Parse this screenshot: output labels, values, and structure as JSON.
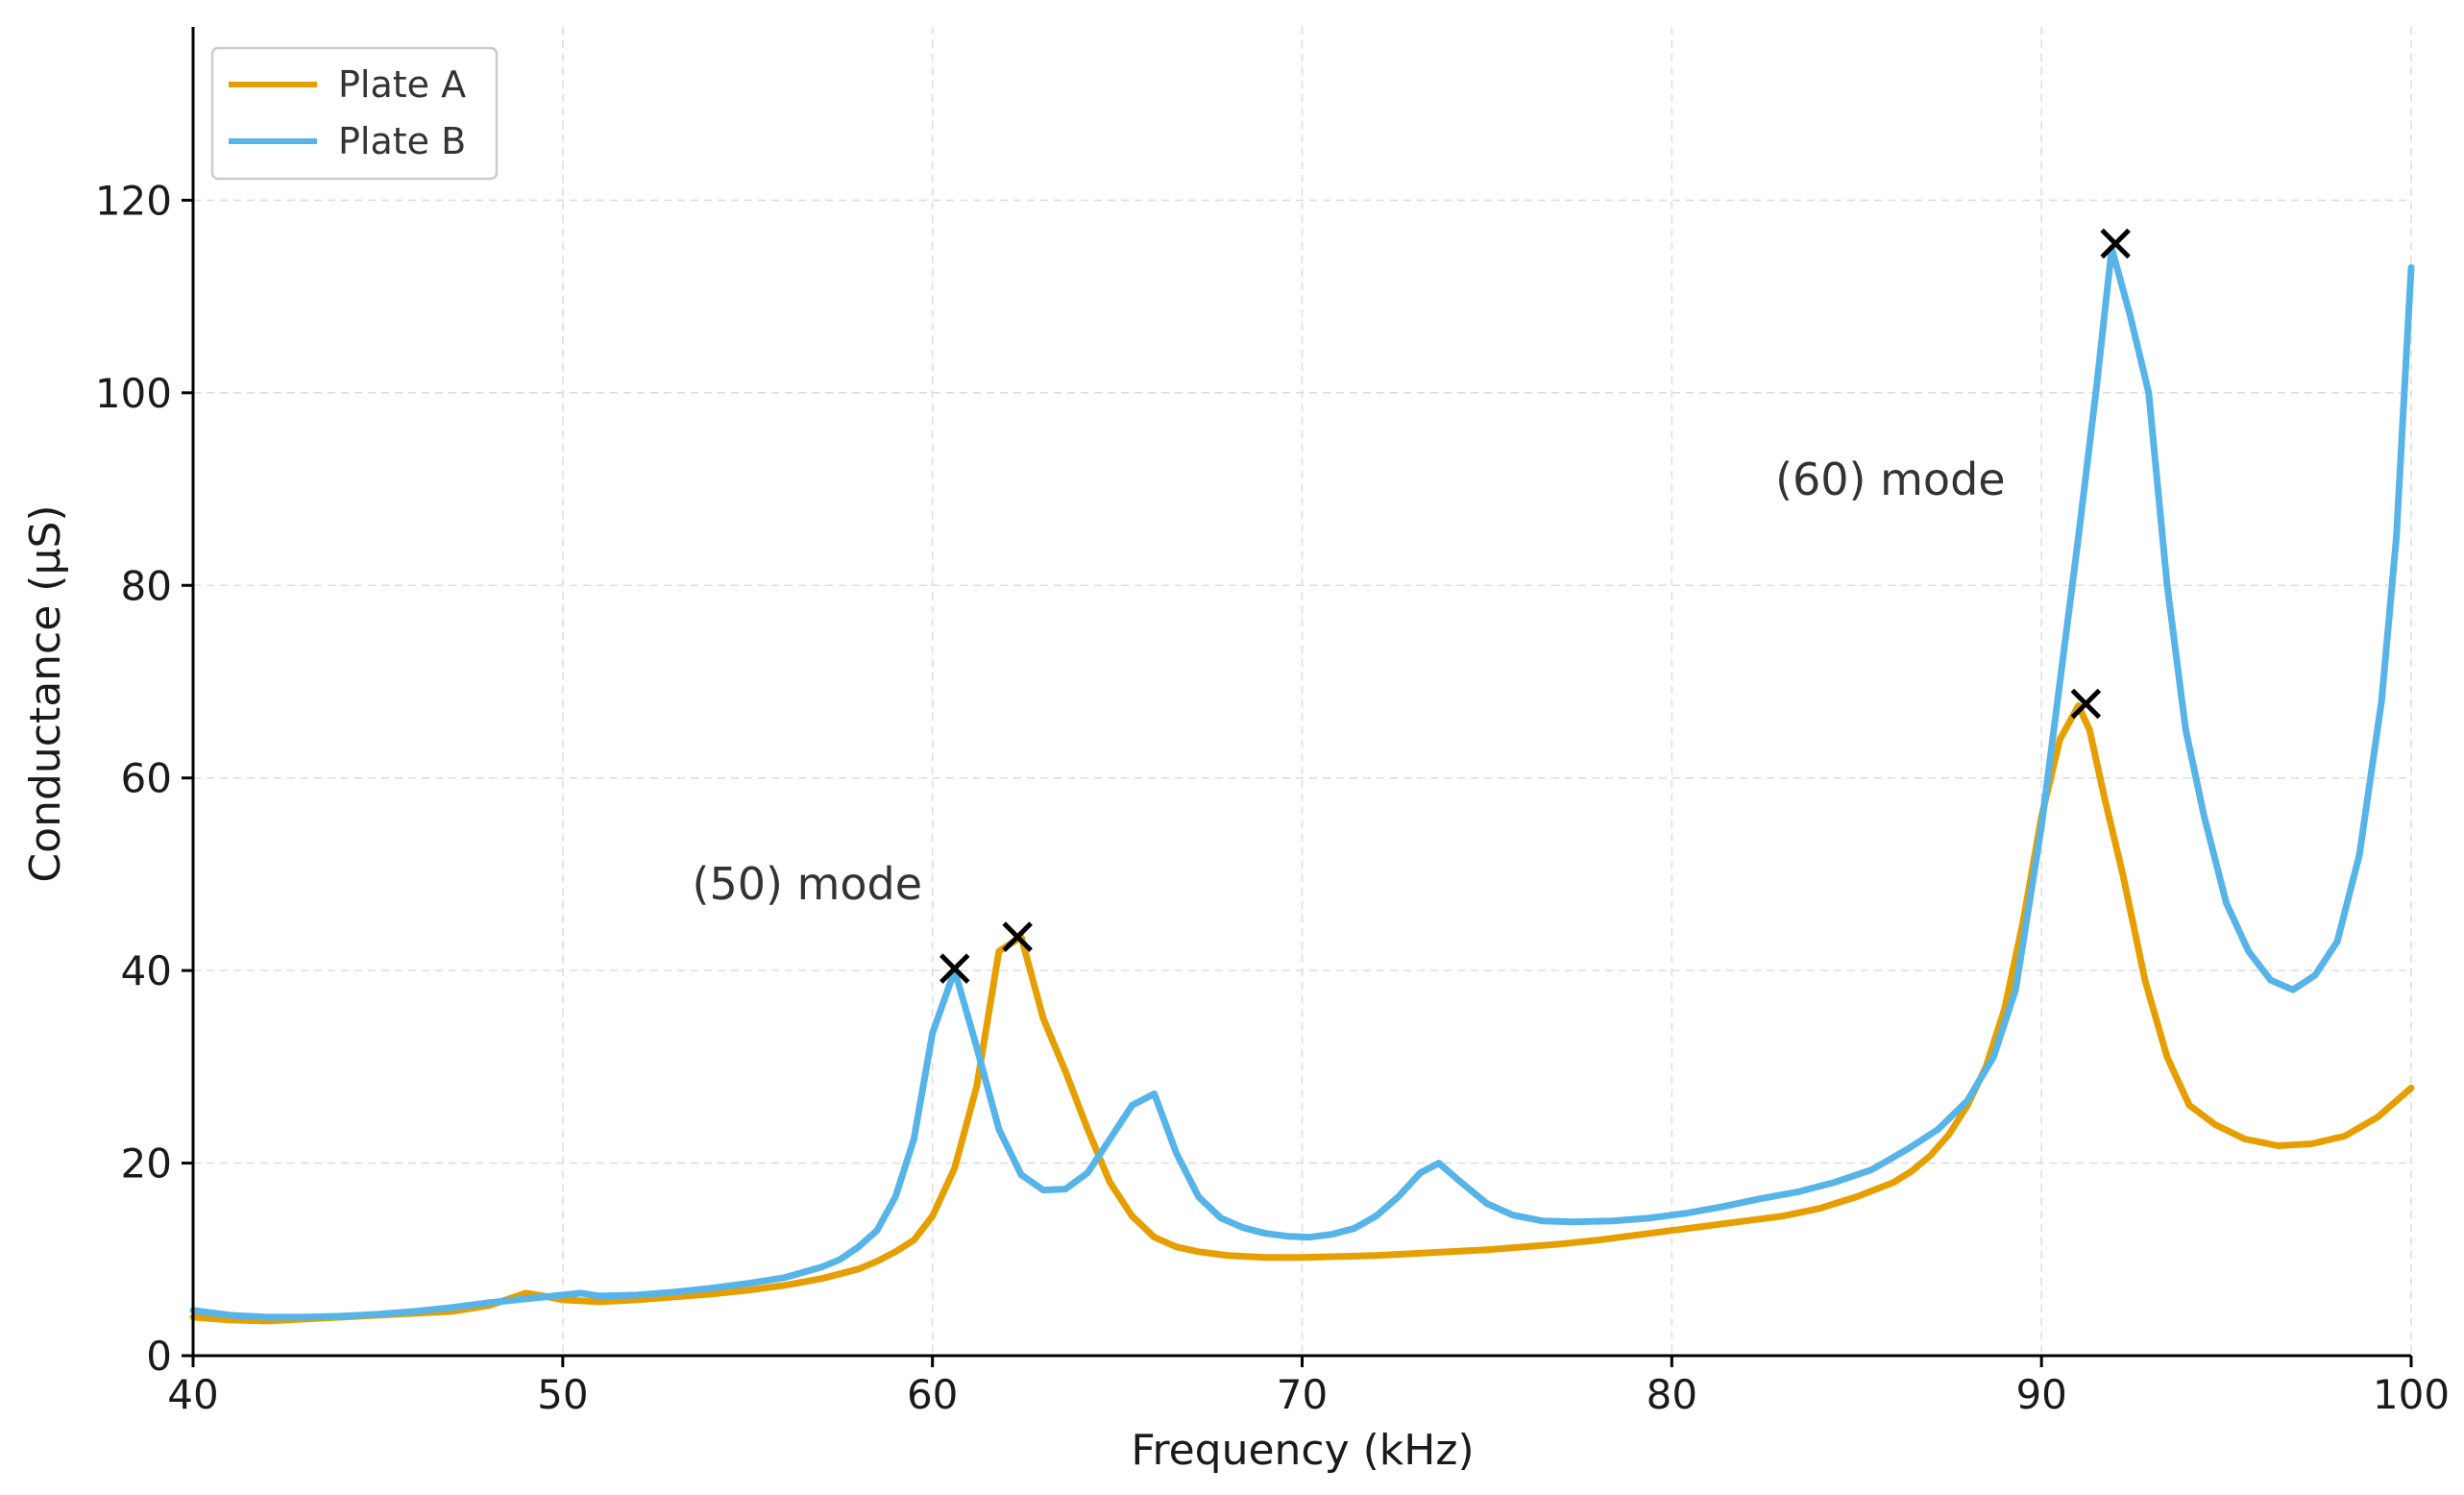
{
  "chart_data": {
    "type": "line",
    "xlabel": "Frequency (kHz)",
    "ylabel": "Conductance (μS)",
    "xlim": [
      40,
      100
    ],
    "ylim": [
      0,
      138
    ],
    "x_ticks": [
      40,
      50,
      60,
      70,
      80,
      90,
      100
    ],
    "y_ticks": [
      0,
      20,
      40,
      60,
      80,
      100,
      120
    ],
    "grid": true,
    "legend_position": "top-left",
    "series": [
      {
        "name": "Plate A",
        "color": "#E69F00",
        "x": [
          40,
          41,
          42,
          43,
          44,
          45,
          46,
          47,
          48,
          49,
          49.5,
          50,
          51,
          52,
          53,
          54,
          55,
          56,
          57,
          58,
          58.5,
          59,
          59.5,
          60,
          60.6,
          61.2,
          61.8,
          62.4,
          63,
          63.6,
          64.2,
          64.8,
          65.4,
          66,
          66.6,
          67.2,
          68,
          69,
          70,
          71,
          72,
          73,
          74,
          75,
          76,
          77,
          78,
          79,
          80,
          81,
          82,
          83,
          84,
          85,
          86,
          86.5,
          87,
          87.5,
          88,
          88.5,
          89,
          89.5,
          90,
          90.5,
          91,
          91.3,
          91.7,
          92.2,
          92.8,
          93.4,
          94,
          94.7,
          95.5,
          96.4,
          97.3,
          98.2,
          99.1,
          100
        ],
        "values": [
          4.0,
          3.7,
          3.6,
          3.8,
          4.0,
          4.2,
          4.4,
          4.6,
          5.2,
          6.5,
          6.2,
          5.8,
          5.6,
          5.8,
          6.1,
          6.4,
          6.8,
          7.3,
          8.0,
          9.0,
          9.8,
          10.8,
          12.0,
          14.5,
          19.5,
          28.0,
          42.0,
          43.5,
          35.0,
          29.5,
          23.5,
          18.0,
          14.5,
          12.3,
          11.3,
          10.8,
          10.4,
          10.2,
          10.2,
          10.3,
          10.4,
          10.6,
          10.8,
          11.0,
          11.3,
          11.6,
          12.0,
          12.5,
          13.0,
          13.5,
          14.0,
          14.5,
          15.3,
          16.5,
          18.0,
          19.2,
          20.8,
          23.0,
          26.0,
          30.0,
          36.0,
          45.0,
          56.0,
          64.0,
          67.5,
          65.0,
          58.0,
          50.0,
          39.0,
          31.0,
          26.0,
          24.0,
          22.5,
          21.8,
          22.0,
          22.8,
          24.8,
          27.8
        ]
      },
      {
        "name": "Plate B",
        "color": "#56B4E9",
        "x": [
          40,
          41,
          42,
          43,
          44,
          45,
          46,
          47,
          48,
          49,
          50,
          50.5,
          51,
          52,
          53,
          54,
          55,
          56,
          57,
          57.5,
          58,
          58.5,
          59,
          59.5,
          60,
          60.6,
          61.2,
          61.8,
          62.4,
          63,
          63.6,
          64.2,
          64.8,
          65.4,
          66,
          66.6,
          67.2,
          67.8,
          68.4,
          69,
          69.6,
          70.2,
          70.8,
          71.4,
          72,
          72.6,
          73.2,
          73.7,
          74.3,
          75,
          75.7,
          76.5,
          77.4,
          78.4,
          79.4,
          80.4,
          81.4,
          82.4,
          83.4,
          84.4,
          85.4,
          86.4,
          87.2,
          88,
          88.7,
          89.3,
          90,
          90.5,
          91,
          91.5,
          91.9,
          92.4,
          92.9,
          93.4,
          93.9,
          94.4,
          95,
          95.6,
          96.2,
          96.8,
          97.4,
          98,
          98.6,
          99.2,
          99.6,
          100
        ],
        "values": [
          4.7,
          4.2,
          4.0,
          4.0,
          4.1,
          4.3,
          4.6,
          5.0,
          5.5,
          5.9,
          6.3,
          6.5,
          6.2,
          6.3,
          6.6,
          7.0,
          7.5,
          8.1,
          9.2,
          10.0,
          11.3,
          13.0,
          16.5,
          22.5,
          33.5,
          40.0,
          32.0,
          23.5,
          18.8,
          17.2,
          17.3,
          19.0,
          22.5,
          26.0,
          27.2,
          21.0,
          16.5,
          14.3,
          13.3,
          12.7,
          12.4,
          12.3,
          12.6,
          13.2,
          14.5,
          16.5,
          19.0,
          20.0,
          18.0,
          15.8,
          14.6,
          14.0,
          13.9,
          14.0,
          14.3,
          14.8,
          15.5,
          16.3,
          17.0,
          18.0,
          19.3,
          21.5,
          23.5,
          26.5,
          31.0,
          38.0,
          55.0,
          70.0,
          85.0,
          101.0,
          115.0,
          108.0,
          100.0,
          80.0,
          65.0,
          56.0,
          47.0,
          42.0,
          39.0,
          38.0,
          39.5,
          43.0,
          52.0,
          68.0,
          85.0,
          113.0
        ]
      }
    ],
    "peaks": [
      {
        "series": "Plate B",
        "x": 60.6,
        "y": 40.2
      },
      {
        "series": "Plate A",
        "x": 62.3,
        "y": 43.5
      },
      {
        "series": "Plate A",
        "x": 91.2,
        "y": 67.7
      },
      {
        "series": "Plate B",
        "x": 92.0,
        "y": 115.5
      }
    ],
    "annotations": [
      {
        "text": "(50) mode",
        "x": 53.5,
        "y": 49
      },
      {
        "text": "(60) mode",
        "x": 82.8,
        "y": 91
      }
    ]
  }
}
